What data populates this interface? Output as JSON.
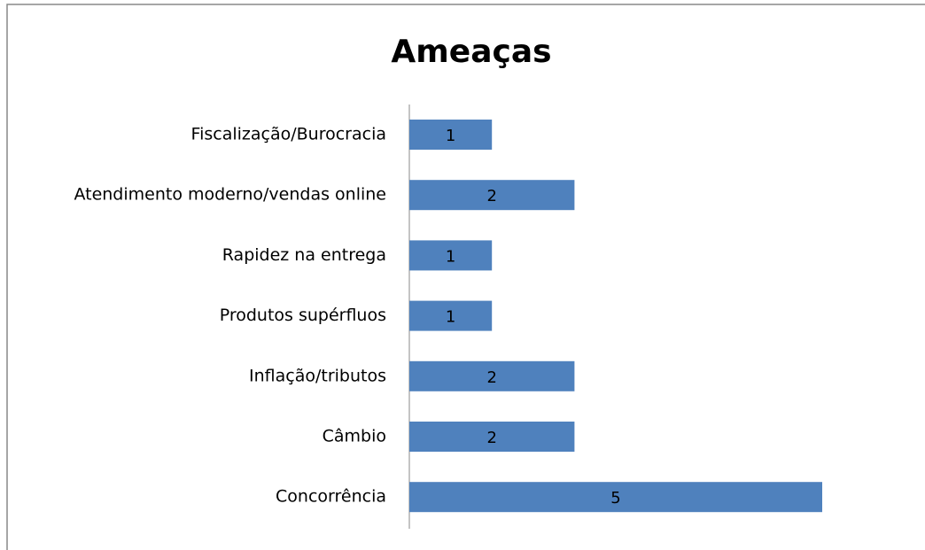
{
  "chart_data": {
    "type": "bar",
    "orientation": "horizontal",
    "title": "Ameaças",
    "categories": [
      "Fiscalização/Burocracia",
      "Atendimento moderno/vendas online",
      "Rapidez na entrega",
      "Produtos supérfluos",
      "Inflação/tributos",
      "Câmbio",
      "Concorrência"
    ],
    "values": [
      1,
      2,
      1,
      1,
      2,
      2,
      5
    ],
    "color": "#4f81bd"
  }
}
